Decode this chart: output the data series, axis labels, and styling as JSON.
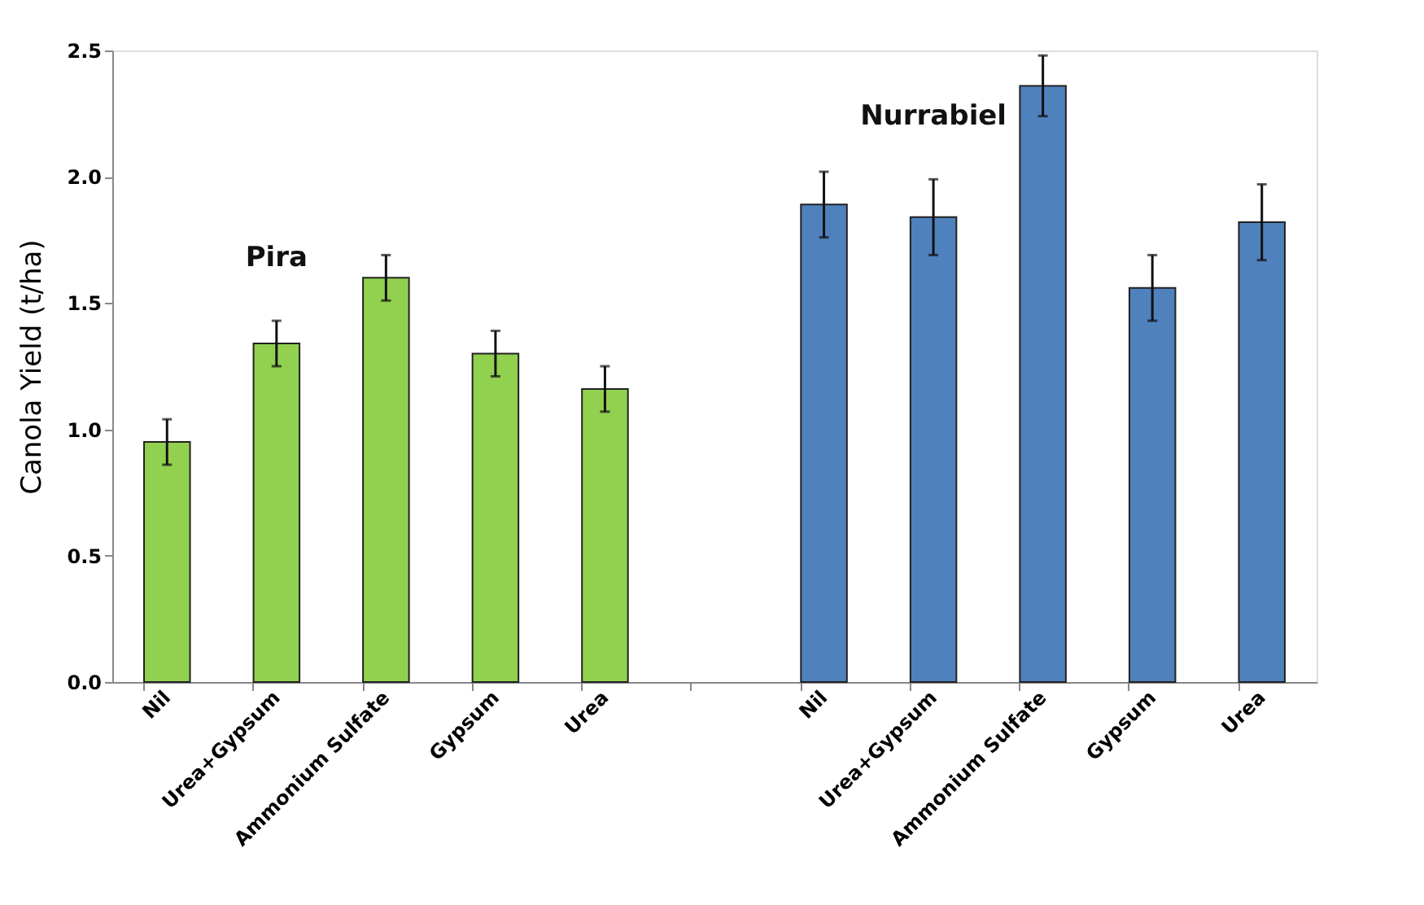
{
  "chart_data": {
    "type": "bar",
    "ylabel": "Canola Yield (t/ha)",
    "categories": [
      "Nil",
      "Urea+Gypsum",
      "Ammonium Sulfate",
      "Gypsum",
      "Urea",
      null,
      "Nil",
      "Urea+Gypsum",
      "Ammonium Sulfate",
      "Gypsum",
      "Urea"
    ],
    "series": [
      {
        "name": "Pira",
        "color": "#92d050",
        "values": [
          0.95,
          1.34,
          1.6,
          1.3,
          1.16,
          null,
          null,
          null,
          null,
          null,
          null
        ],
        "errors": [
          0.09,
          0.09,
          0.09,
          0.09,
          0.09,
          null,
          null,
          null,
          null,
          null,
          null
        ]
      },
      {
        "name": "Nurrabiel",
        "color": "#4f81bd",
        "values": [
          null,
          null,
          null,
          null,
          null,
          null,
          1.89,
          1.84,
          2.36,
          1.56,
          1.82
        ],
        "errors": [
          null,
          null,
          null,
          null,
          null,
          null,
          0.13,
          0.15,
          0.12,
          0.13,
          0.15
        ]
      }
    ],
    "ylim": [
      0,
      2.5
    ],
    "yticks": [
      {
        "value": 0,
        "label": "0.0"
      },
      0.5,
      {
        "value": 1,
        "label": "1.0"
      },
      1.5,
      {
        "value": 2,
        "label": "2.0"
      },
      2.5
    ],
    "grid": false
  }
}
